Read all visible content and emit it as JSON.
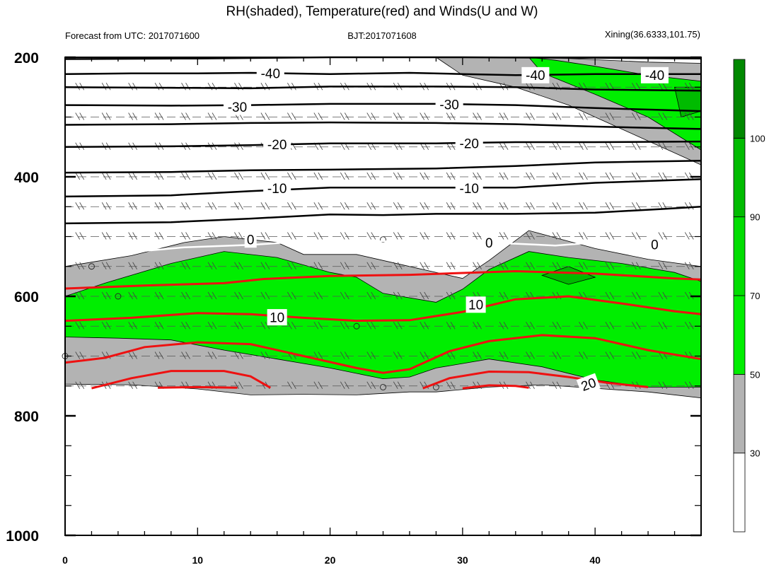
{
  "chart_data": {
    "type": "contour",
    "title": "RH(shaded), Temperature(red) and Winds(U and W)",
    "subtitle_left": "Forecast from UTC: 2017071600",
    "subtitle_center": "BJT:2017071608",
    "subtitle_right": "Xining(36.6333,101.75)",
    "x_ticks": [
      0,
      10,
      20,
      30,
      40
    ],
    "y_ticks": [
      200,
      400,
      600,
      800,
      1000
    ],
    "xlim": [
      0,
      48
    ],
    "ylim": [
      200,
      1000
    ],
    "y_inverted": true,
    "colorbar": {
      "levels": [
        30,
        50,
        70,
        90,
        100
      ],
      "colors": [
        "#ffffff",
        "#b3b3b3",
        "#00ee00",
        "#00dd00",
        "#00bb00",
        "#008800"
      ]
    },
    "colors": {
      "temperature_line": "#ee1111",
      "contour_line": "#000000",
      "zero_line": "#ffffff",
      "gray_fill": "#b3b3b3",
      "green_fill": "#00ee00",
      "dark_green_fill": "#00bb00"
    },
    "black_contour_labels": [
      {
        "text": "-40",
        "x": 15.5,
        "p": 227
      },
      {
        "text": "-40",
        "x": 35.5,
        "p": 230
      },
      {
        "text": "-40",
        "x": 44.5,
        "p": 230
      },
      {
        "text": "-30",
        "x": 13,
        "p": 283
      },
      {
        "text": "-30",
        "x": 29,
        "p": 279
      },
      {
        "text": "-20",
        "x": 16,
        "p": 346
      },
      {
        "text": "-20",
        "x": 30.5,
        "p": 344
      },
      {
        "text": "-10",
        "x": 16,
        "p": 419
      },
      {
        "text": "-10",
        "x": 30.5,
        "p": 419
      }
    ],
    "zero_labels": [
      {
        "text": "0",
        "x": 14,
        "p": 505
      },
      {
        "text": "0",
        "x": 32,
        "p": 510
      },
      {
        "text": "0",
        "x": 44.5,
        "p": 513
      }
    ],
    "red_contour_labels": [
      {
        "text": "10",
        "x": 16,
        "p": 635
      },
      {
        "text": "10",
        "x": 31,
        "p": 614
      },
      {
        "text": "20",
        "x": 39.5,
        "p": 747
      }
    ],
    "black_isotherms": [
      {
        "points": [
          [
            0,
            203
          ],
          [
            10,
            202
          ],
          [
            20,
            200
          ],
          [
            30,
            200
          ],
          [
            40,
            201
          ],
          [
            48,
            202
          ]
        ]
      },
      {
        "points": [
          [
            0,
            228
          ],
          [
            5,
            227
          ],
          [
            10,
            227
          ],
          [
            14,
            226
          ],
          [
            20,
            228
          ],
          [
            26,
            226
          ],
          [
            30,
            228
          ],
          [
            34,
            230
          ],
          [
            40,
            228
          ],
          [
            48,
            228
          ]
        ]
      },
      {
        "points": [
          [
            0,
            250
          ],
          [
            8,
            251
          ],
          [
            14,
            252
          ],
          [
            20,
            249
          ],
          [
            28,
            249
          ],
          [
            34,
            250
          ],
          [
            40,
            254
          ],
          [
            48,
            256
          ]
        ]
      },
      {
        "points": [
          [
            0,
            280
          ],
          [
            8,
            281
          ],
          [
            14,
            280
          ],
          [
            20,
            278
          ],
          [
            28,
            278
          ],
          [
            34,
            280
          ],
          [
            40,
            285
          ],
          [
            48,
            290
          ]
        ]
      },
      {
        "points": [
          [
            0,
            313
          ],
          [
            8,
            312
          ],
          [
            14,
            310
          ],
          [
            20,
            309
          ],
          [
            28,
            310
          ],
          [
            34,
            312
          ],
          [
            40,
            316
          ],
          [
            48,
            320
          ]
        ]
      },
      {
        "points": [
          [
            0,
            350
          ],
          [
            8,
            349
          ],
          [
            14,
            347
          ],
          [
            20,
            344
          ],
          [
            28,
            344
          ],
          [
            34,
            342
          ],
          [
            40,
            342
          ],
          [
            48,
            341
          ]
        ]
      },
      {
        "points": [
          [
            0,
            393
          ],
          [
            8,
            392
          ],
          [
            14,
            389
          ],
          [
            20,
            388
          ],
          [
            28,
            386
          ],
          [
            34,
            382
          ],
          [
            40,
            376
          ],
          [
            48,
            373
          ]
        ]
      },
      {
        "points": [
          [
            0,
            433
          ],
          [
            8,
            431
          ],
          [
            14,
            424
          ],
          [
            20,
            418
          ],
          [
            28,
            418
          ],
          [
            34,
            418
          ],
          [
            40,
            410
          ],
          [
            48,
            404
          ]
        ]
      },
      {
        "points": [
          [
            0,
            478
          ],
          [
            8,
            476
          ],
          [
            14,
            470
          ],
          [
            20,
            463
          ],
          [
            24,
            464
          ],
          [
            28,
            462
          ],
          [
            34,
            462
          ],
          [
            40,
            460
          ],
          [
            45,
            454
          ],
          [
            48,
            450
          ]
        ]
      }
    ],
    "zero_isotherm": [
      [
        6,
        524
      ],
      [
        9,
        518
      ],
      [
        14,
        514
      ],
      [
        18,
        508
      ],
      [
        24,
        508
      ],
      [
        30,
        510
      ],
      [
        34,
        512
      ],
      [
        37,
        515
      ],
      [
        40,
        510
      ],
      [
        44,
        518
      ],
      [
        48,
        511
      ]
    ],
    "red_isotherms": [
      {
        "points": [
          [
            0,
            587
          ],
          [
            6,
            582
          ],
          [
            12,
            578
          ],
          [
            15,
            571
          ],
          [
            20,
            566
          ],
          [
            26,
            564
          ],
          [
            30,
            561
          ],
          [
            34,
            558
          ],
          [
            40,
            562
          ],
          [
            46,
            570
          ],
          [
            48,
            572
          ]
        ]
      },
      {
        "points": [
          [
            0,
            641
          ],
          [
            5,
            636
          ],
          [
            10,
            628
          ],
          [
            14,
            630
          ],
          [
            18,
            636
          ],
          [
            22,
            641
          ],
          [
            26,
            640
          ],
          [
            30,
            626
          ],
          [
            34,
            605
          ],
          [
            38,
            600
          ],
          [
            42,
            612
          ],
          [
            46,
            625
          ],
          [
            48,
            630
          ]
        ]
      },
      {
        "points": [
          [
            0,
            711
          ],
          [
            3,
            703
          ],
          [
            6,
            685
          ],
          [
            10,
            677
          ],
          [
            14,
            680
          ],
          [
            18,
            700
          ],
          [
            22,
            720
          ],
          [
            24,
            728
          ],
          [
            26,
            722
          ],
          [
            29,
            692
          ],
          [
            32,
            675
          ],
          [
            36,
            665
          ],
          [
            40,
            670
          ],
          [
            44,
            690
          ],
          [
            48,
            705
          ]
        ]
      },
      {
        "points": [
          [
            2,
            754
          ],
          [
            5,
            737
          ],
          [
            8,
            725
          ],
          [
            12,
            725
          ],
          [
            14,
            734
          ],
          [
            15.5,
            753
          ]
        ]
      },
      {
        "points": [
          [
            7,
            753
          ],
          [
            10,
            752
          ],
          [
            13,
            753
          ]
        ]
      },
      {
        "points": [
          [
            27,
            754
          ],
          [
            29,
            737
          ],
          [
            32,
            726
          ],
          [
            35,
            727
          ],
          [
            38,
            735
          ],
          [
            41,
            745
          ],
          [
            44,
            752
          ]
        ]
      },
      {
        "points": [
          [
            30,
            754
          ],
          [
            32,
            749
          ],
          [
            34,
            750
          ],
          [
            35,
            753
          ]
        ]
      }
    ],
    "gray_region": [
      [
        0,
        550
      ],
      [
        5,
        532
      ],
      [
        9,
        510
      ],
      [
        12,
        500
      ],
      [
        16,
        510
      ],
      [
        18,
        530
      ],
      [
        22,
        530
      ],
      [
        26,
        550
      ],
      [
        30,
        570
      ],
      [
        32,
        540
      ],
      [
        35,
        490
      ],
      [
        40,
        520
      ],
      [
        44,
        538
      ],
      [
        48,
        550
      ],
      [
        48,
        770
      ],
      [
        44,
        760
      ],
      [
        40,
        754
      ],
      [
        36,
        748
      ],
      [
        32,
        752
      ],
      [
        28,
        760
      ],
      [
        26,
        760
      ],
      [
        22,
        765
      ],
      [
        18,
        764
      ],
      [
        14,
        765
      ],
      [
        10,
        755
      ],
      [
        5,
        748
      ],
      [
        0,
        747
      ]
    ],
    "gray_region_top": [
      [
        28,
        200
      ],
      [
        36,
        200
      ],
      [
        44,
        208
      ],
      [
        48,
        210
      ],
      [
        48,
        380
      ],
      [
        42,
        320
      ],
      [
        38,
        280
      ],
      [
        34,
        250
      ],
      [
        30,
        230
      ]
    ],
    "green_regions": [
      [
        [
          0,
          600
        ],
        [
          3,
          578
        ],
        [
          8,
          545
        ],
        [
          12,
          525
        ],
        [
          16,
          535
        ],
        [
          20,
          560
        ],
        [
          22,
          568
        ],
        [
          24,
          595
        ],
        [
          28,
          610
        ],
        [
          30,
          588
        ],
        [
          32,
          555
        ],
        [
          35,
          525
        ],
        [
          38,
          535
        ],
        [
          42,
          545
        ],
        [
          46,
          560
        ],
        [
          48,
          575
        ],
        [
          48,
          752
        ],
        [
          44,
          752
        ],
        [
          40,
          740
        ],
        [
          36,
          718
        ],
        [
          32,
          705
        ],
        [
          28,
          720
        ],
        [
          26,
          735
        ],
        [
          24,
          738
        ],
        [
          20,
          720
        ],
        [
          16,
          705
        ],
        [
          12,
          690
        ],
        [
          8,
          673
        ],
        [
          4,
          670
        ],
        [
          0,
          668
        ]
      ],
      [
        [
          35,
          200
        ],
        [
          37,
          205
        ],
        [
          40,
          215
        ],
        [
          44,
          230
        ],
        [
          48,
          240
        ],
        [
          48,
          355
        ],
        [
          44,
          300
        ],
        [
          40,
          262
        ],
        [
          36,
          226
        ]
      ]
    ],
    "dark_green_regions": [
      [
        [
          36,
          565
        ],
        [
          38,
          550
        ],
        [
          40,
          568
        ],
        [
          38,
          580
        ]
      ],
      [
        [
          46,
          250
        ],
        [
          48,
          250
        ],
        [
          48,
          290
        ],
        [
          46.5,
          300
        ]
      ]
    ]
  }
}
